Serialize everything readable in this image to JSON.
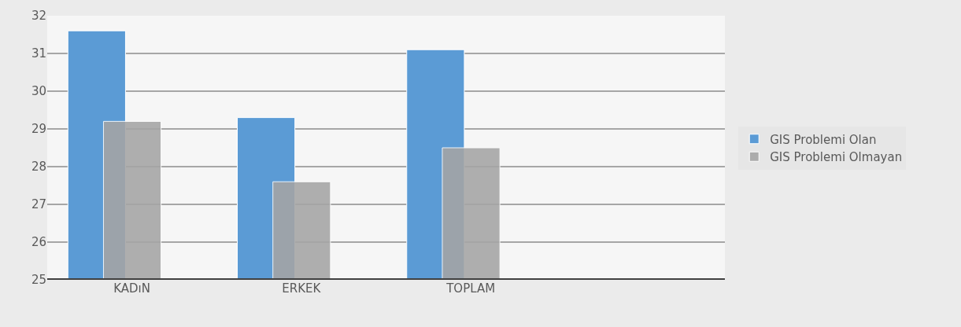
{
  "chart_data": {
    "type": "bar",
    "categories": [
      "KADıN",
      "ERKEK",
      "TOPLAM",
      null
    ],
    "series": [
      {
        "name": "GIS Problemi Olan",
        "color": "#5b9bd5",
        "values": [
          31.6,
          29.3,
          31.1,
          null
        ]
      },
      {
        "name": "GIS Problemi Olmayan",
        "color": "#a5a5a5",
        "values": [
          29.2,
          27.6,
          28.5,
          null
        ]
      }
    ],
    "ylim": [
      25,
      32
    ],
    "yticks": [
      25,
      26,
      27,
      28,
      29,
      30,
      31,
      32
    ],
    "grid": "y",
    "legend": "right"
  }
}
